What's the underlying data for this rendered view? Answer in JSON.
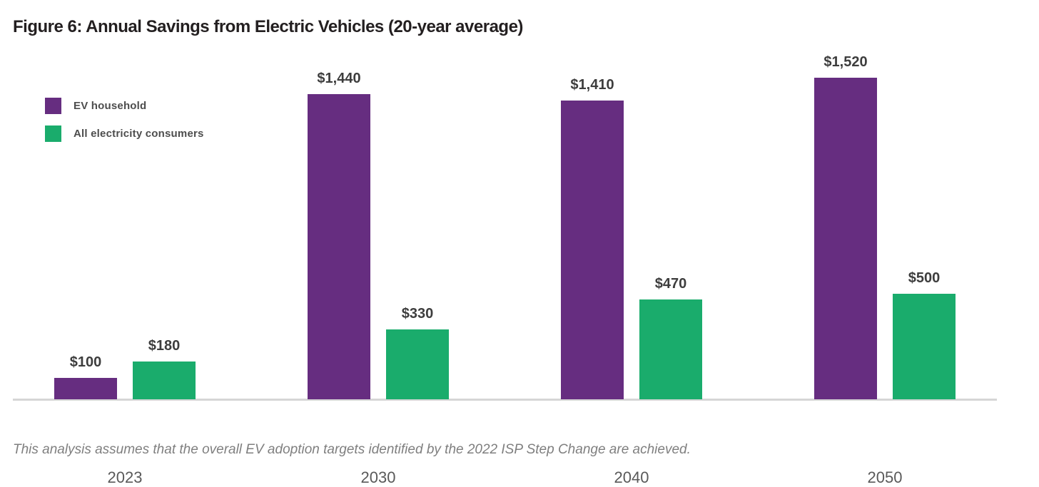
{
  "title": "Figure 6: Annual Savings from Electric Vehicles (20-year average)",
  "footnote": "This analysis assumes that the overall EV adoption targets identified by the 2022 ISP Step Change are achieved.",
  "legend": {
    "items": [
      {
        "label": "EV household",
        "color": "#662d80"
      },
      {
        "label": "All electricity consumers",
        "color": "#1aac6c"
      }
    ]
  },
  "colors": {
    "purple": "#662d80",
    "green": "#1aac6c",
    "axis_line": "#d6d6d6",
    "title_text": "#231f20",
    "label_text": "#3d3d3d",
    "tick_text": "#595959",
    "footnote_text": "#7f7f7f"
  },
  "chart_data": {
    "type": "bar",
    "title": "Figure 6: Annual Savings from Electric Vehicles (20-year average)",
    "categories": [
      "2023",
      "2030",
      "2040",
      "2050"
    ],
    "series": [
      {
        "name": "EV household",
        "color": "#662d80",
        "values": [
          100,
          1440,
          1410,
          1520
        ],
        "labels": [
          "$100",
          "$1,440",
          "$1,410",
          "$1,520"
        ]
      },
      {
        "name": "All electricity consumers",
        "color": "#1aac6c",
        "values": [
          180,
          330,
          470,
          500
        ],
        "labels": [
          "$180",
          "$330",
          "$470",
          "$500"
        ]
      }
    ],
    "xlabel": "",
    "ylabel": "",
    "ylim": [
      0,
      1600
    ],
    "grid": false,
    "value_prefix": "$",
    "legend_position": "top-left",
    "data_labels": true,
    "axis": "x-only"
  }
}
